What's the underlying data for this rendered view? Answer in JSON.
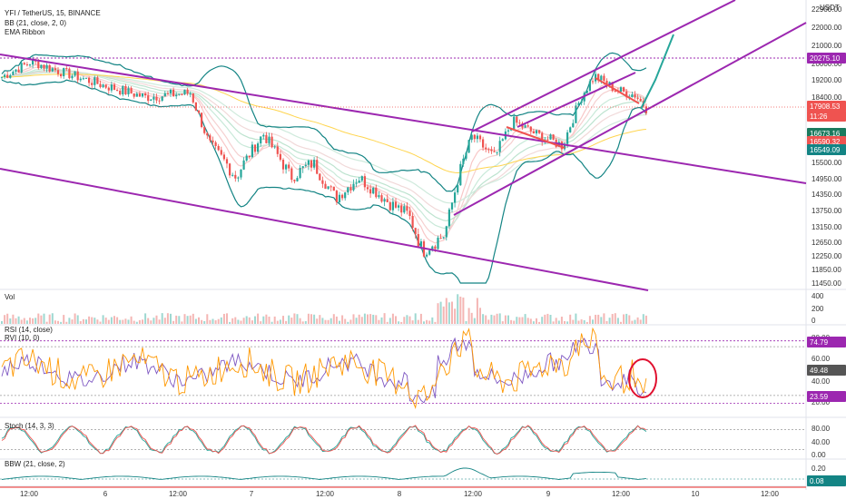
{
  "header": {
    "symbol_line": "YFI / TetherUS, 15, BINANCE",
    "bb_label": "BB (21, close, 2, 0)",
    "ema_label": "EMA Ribbon",
    "currency": "USDT"
  },
  "price_axis": {
    "ticks": [
      "22000.00",
      "21000.00",
      "20000.00",
      "19200.00",
      "18400.00",
      "17700.00",
      "15500.00",
      "14950.00",
      "14350.00",
      "13750.00",
      "13150.00",
      "12650.00",
      "12250.00",
      "11850.00",
      "11450.00"
    ],
    "top_partial": "22900.00"
  },
  "price_tags": {
    "resistance": "20275.10",
    "last": "17908.53",
    "countdown": "11:26",
    "bb_upper": "16673.16",
    "bb_mid": "16590.32",
    "bb_lower": "16549.09"
  },
  "volume": {
    "label": "Vol",
    "ticks": [
      "400",
      "200",
      "0"
    ]
  },
  "rsi": {
    "label1": "RSI (14, close)",
    "label2": "RVI (10, 0)",
    "ticks": [
      "80.00",
      "60.00",
      "40.00",
      "20.00"
    ],
    "tag_high": "74.79",
    "tag_mid": "49.48",
    "tag_low": "23.59"
  },
  "stoch": {
    "label": "Stoch (14, 3, 3)",
    "ticks": [
      "80.00",
      "40.00",
      "0.00"
    ]
  },
  "bbw": {
    "label": "BBW (21, close, 2)",
    "ticks": [
      "0.20"
    ],
    "tag": "0.08"
  },
  "time_axis": [
    "12:00",
    "6",
    "12:00",
    "7",
    "12:00",
    "8",
    "12:00",
    "9",
    "12:00",
    "10",
    "12:00"
  ],
  "colors": {
    "up": "#26a69a",
    "down": "#ef5350",
    "channel": "#9c27b0",
    "bb": "#138484",
    "rsi": "#ff9800",
    "rvi": "#7e57c2",
    "annotation": "#e0102f"
  },
  "chart_data": {
    "type": "line",
    "title": "YFI / TetherUS, 15, BINANCE",
    "x": [
      "5 12:00",
      "6 00:00",
      "6 12:00",
      "7 00:00",
      "7 12:00",
      "8 00:00",
      "8 06:00",
      "8 12:00",
      "9 00:00",
      "9 06:00",
      "9 12:00"
    ],
    "series": [
      {
        "name": "close",
        "values": [
          19700,
          18900,
          18200,
          16000,
          15400,
          14600,
          12600,
          15800,
          16600,
          19300,
          17909
        ]
      },
      {
        "name": "RSI (14, close)",
        "values": [
          55,
          42,
          48,
          45,
          44,
          40,
          25,
          70,
          58,
          75,
          30
        ]
      }
    ],
    "ylim": [
      11450,
      22900
    ],
    "grid": false,
    "legend": "top-left"
  }
}
